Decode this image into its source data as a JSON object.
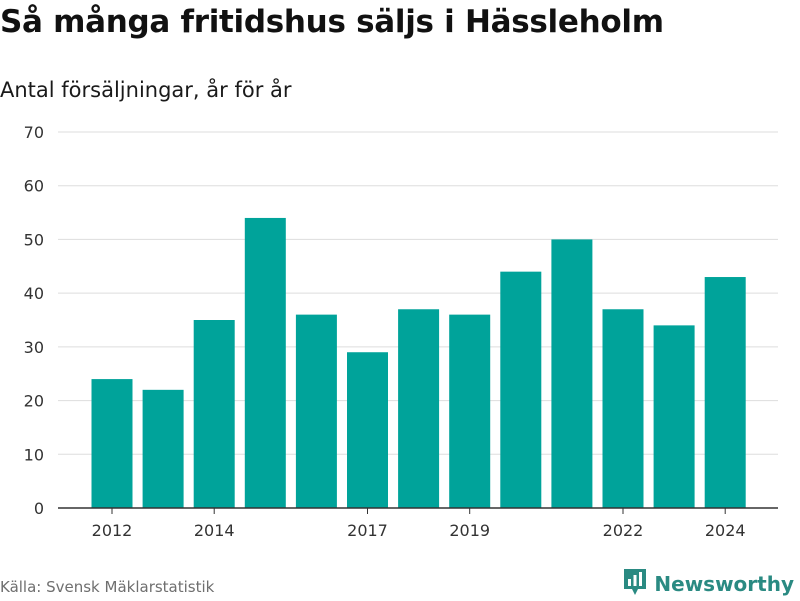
{
  "header": {
    "title": "Så många fritidshus säljs i Hässleholm",
    "subtitle": "Antal försäljningar, år för år"
  },
  "footer": {
    "source": "Källa: Svensk Mäklarstatistik",
    "brand": "Newsworthy",
    "brand_icon": "bar-chart-logo-icon"
  },
  "colors": {
    "bar": "#00a39a",
    "grid": "#dddddd",
    "axis": "#333333",
    "tick_text": "#333333",
    "brand": "#2a8a82"
  },
  "chart_data": {
    "type": "bar",
    "title": "Så många fritidshus säljs i Hässleholm",
    "subtitle": "Antal försäljningar, år för år",
    "xlabel": "",
    "ylabel": "",
    "categories": [
      2012,
      2013,
      2014,
      2015,
      2016,
      2017,
      2018,
      2019,
      2020,
      2021,
      2022,
      2023,
      2024
    ],
    "values": [
      24,
      22,
      35,
      54,
      36,
      29,
      37,
      36,
      44,
      50,
      37,
      34,
      43
    ],
    "x_tick_labels": [
      "2012",
      "2014",
      "2017",
      "2019",
      "2022",
      "2024"
    ],
    "x_tick_years": [
      2012,
      2014,
      2017,
      2019,
      2022,
      2024
    ],
    "y_ticks": [
      0,
      10,
      20,
      30,
      40,
      50,
      60,
      70
    ],
    "y_tick_labels": [
      "0",
      "10",
      "20",
      "30",
      "40",
      "50",
      "60",
      "70"
    ],
    "ylim": [
      0,
      70
    ],
    "grid": true,
    "legend": "none"
  }
}
